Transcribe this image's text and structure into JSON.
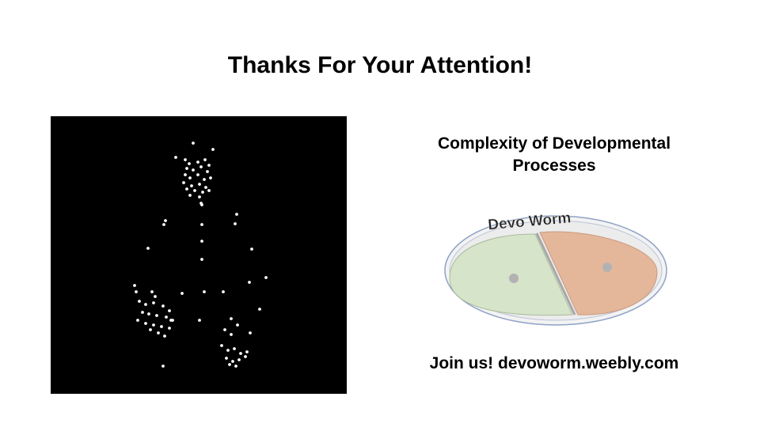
{
  "slide": {
    "title": "Thanks For Your Attention!",
    "subtitle_line1": "Complexity of Developmental",
    "subtitle_line2": "Processes",
    "logo_text": "Devo Worm",
    "join_text": "Join us! devoworm.weebly.com"
  },
  "colors": {
    "background": "#ffffff",
    "panel": "#000000",
    "dots": "#ffffff",
    "logo_left": "#d5e3c9",
    "logo_right": "#e8b89c",
    "logo_outline": "#8fa2c6"
  }
}
